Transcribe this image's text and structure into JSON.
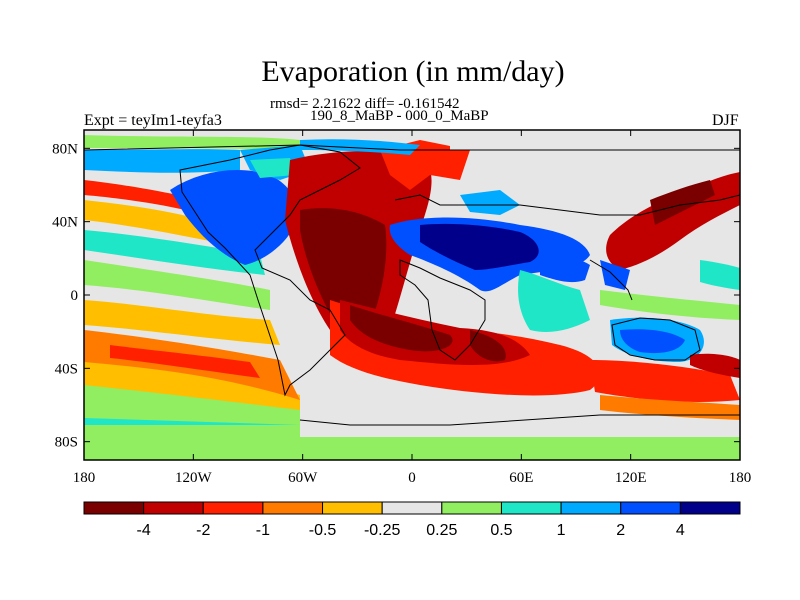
{
  "title": "Evaporation (in mm/day)",
  "stats": "rmsd= 2.21622 diff= -0.161542",
  "experiments": "190_8_MaBP - 000_0_MaBP",
  "expt_label": "Expt = teyIm1-teyfa3",
  "season": "DJF",
  "x_ticks": [
    {
      "lon": -180,
      "label": "180"
    },
    {
      "lon": -120,
      "label": "120W"
    },
    {
      "lon": -60,
      "label": "60W"
    },
    {
      "lon": 0,
      "label": "0"
    },
    {
      "lon": 60,
      "label": "60E"
    },
    {
      "lon": 120,
      "label": "120E"
    },
    {
      "lon": 180,
      "label": "180"
    }
  ],
  "y_ticks": [
    {
      "lat": 80,
      "label": "80N"
    },
    {
      "lat": 40,
      "label": "40N"
    },
    {
      "lat": 0,
      "label": "0"
    },
    {
      "lat": -40,
      "label": "40S"
    },
    {
      "lat": -80,
      "label": "80S"
    }
  ],
  "colorbar": {
    "colors": [
      "#7a0000",
      "#c00000",
      "#ff2000",
      "#ff7b00",
      "#ffbf00",
      "#e6e6e6",
      "#90ee60",
      "#20e6c8",
      "#00aaff",
      "#0050ff",
      "#00008b"
    ],
    "labels": [
      "-4",
      "-2",
      "-1",
      "-0.5",
      "-0.25",
      "0.25",
      "0.5",
      "1",
      "2",
      "4"
    ]
  },
  "map_background": "#e6e6e6"
}
